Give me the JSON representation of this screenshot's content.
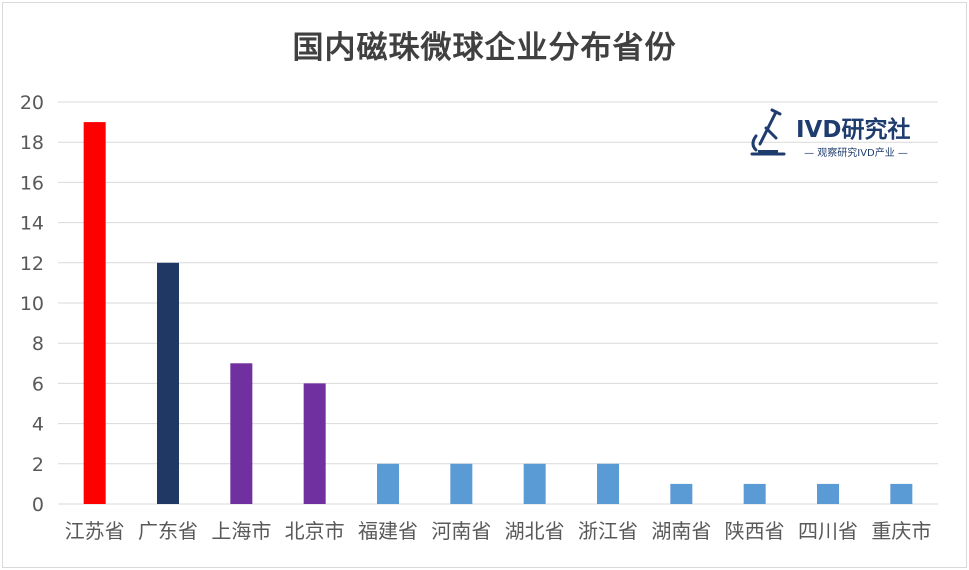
{
  "chart_data": {
    "type": "bar",
    "title": "国内磁珠微球企业分布省份",
    "categories": [
      "江苏省",
      "广东省",
      "上海市",
      "北京市",
      "福建省",
      "河南省",
      "湖北省",
      "浙江省",
      "湖南省",
      "陕西省",
      "四川省",
      "重庆市"
    ],
    "values": [
      19,
      12,
      7,
      6,
      2,
      2,
      2,
      2,
      1,
      1,
      1,
      1
    ],
    "colors": [
      "#ff0000",
      "#1f3864",
      "#7030a0",
      "#7030a0",
      "#5b9bd5",
      "#5b9bd5",
      "#5b9bd5",
      "#5b9bd5",
      "#5b9bd5",
      "#5b9bd5",
      "#5b9bd5",
      "#5b9bd5"
    ],
    "ylim": [
      0,
      20
    ],
    "yticks": [
      0,
      2,
      4,
      6,
      8,
      10,
      12,
      14,
      16,
      18,
      20
    ],
    "grid": true,
    "xlabel": "",
    "ylabel": ""
  },
  "logo": {
    "name": "IVD研究社",
    "tagline": "— 观察研究IVD产业 —",
    "icon": "microscope-icon",
    "color": "#1f3c6e"
  }
}
